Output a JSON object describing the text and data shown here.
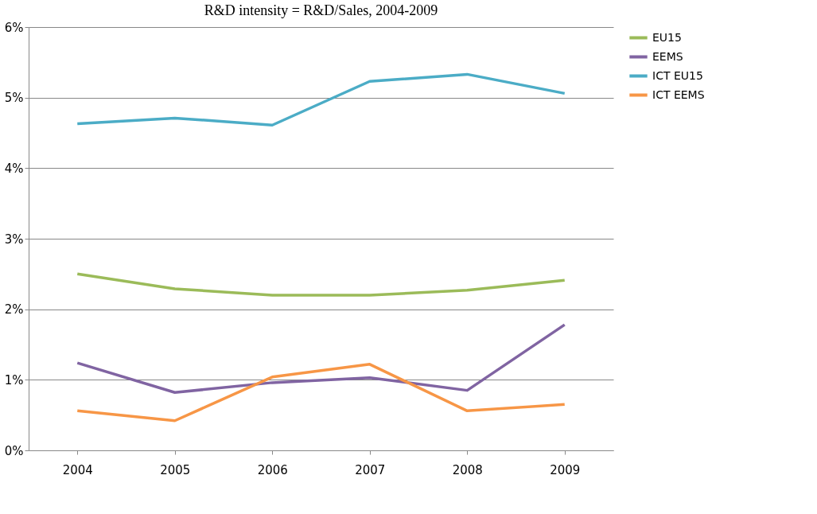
{
  "chart_data": {
    "type": "line",
    "title": "R&D intensity = R&D/Sales, 2004-2009",
    "categories": [
      "2004",
      "2005",
      "2006",
      "2007",
      "2008",
      "2009"
    ],
    "series": [
      {
        "name": "EU15",
        "color": "#9bbb59",
        "values": [
          2.5,
          2.29,
          2.2,
          2.2,
          2.27,
          2.41
        ]
      },
      {
        "name": "EEMS",
        "color": "#8064a2",
        "values": [
          1.24,
          0.82,
          0.96,
          1.03,
          0.85,
          1.78
        ]
      },
      {
        "name": "ICT EU15",
        "color": "#4bacc6",
        "values": [
          4.63,
          4.71,
          4.61,
          5.23,
          5.33,
          5.06
        ]
      },
      {
        "name": "ICT EEMS",
        "color": "#f79646",
        "values": [
          0.56,
          0.42,
          1.04,
          1.22,
          0.56,
          0.65
        ]
      }
    ],
    "ylim": [
      0,
      6
    ],
    "yticks": [
      {
        "value": 0,
        "label": "0%"
      },
      {
        "value": 1,
        "label": "1%"
      },
      {
        "value": 2,
        "label": "2%"
      },
      {
        "value": 3,
        "label": "3%"
      },
      {
        "value": 4,
        "label": "4%"
      },
      {
        "value": 5,
        "label": "5%"
      },
      {
        "value": 6,
        "label": "6%"
      }
    ],
    "grid": "y",
    "legend": "right",
    "marker": "none",
    "line_style": "solid"
  }
}
